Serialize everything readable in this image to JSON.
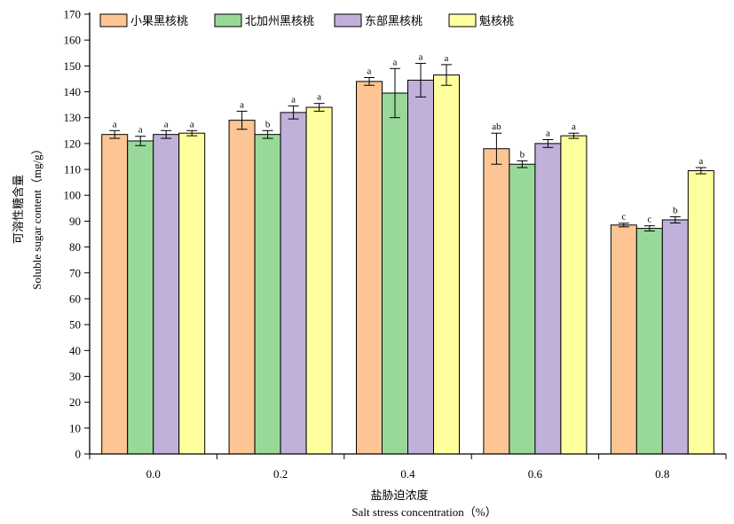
{
  "chart_data": {
    "type": "bar",
    "title": "",
    "xlabel_cn": "盐胁迫浓度",
    "xlabel_en": "Salt stress concentration（%）",
    "ylabel_cn": "可溶性糖含量",
    "ylabel_en": "Soluble sugar content（mg/g）",
    "ylim": [
      0,
      170
    ],
    "ytick_step": 10,
    "legend_position": "top-left",
    "grid": false,
    "categories": [
      "0.0",
      "0.2",
      "0.4",
      "0.6",
      "0.8"
    ],
    "series": [
      {
        "name": "小果黑核桃",
        "color": "#fcc593",
        "values": [
          123.5,
          129,
          144,
          118,
          88.5
        ],
        "errors": [
          1.5,
          3.5,
          1.5,
          6,
          0.7
        ],
        "letters": [
          "a",
          "a",
          "a",
          "ab",
          "c"
        ]
      },
      {
        "name": "北加州黑核桃",
        "color": "#98d99a",
        "values": [
          121,
          123.5,
          139.5,
          112,
          87.2
        ],
        "errors": [
          1.8,
          1.5,
          9.5,
          1.3,
          1
        ],
        "letters": [
          "a",
          "b",
          "a",
          "b",
          "c"
        ]
      },
      {
        "name": "东部黑核桃",
        "color": "#c1b0da",
        "values": [
          123.5,
          132,
          144.5,
          120,
          90.5
        ],
        "errors": [
          1.5,
          2.5,
          6.5,
          1.5,
          1.2
        ],
        "letters": [
          "a",
          "a",
          "a",
          "a",
          "b"
        ]
      },
      {
        "name": "魁核桃",
        "color": "#ffff9d",
        "values": [
          124,
          134,
          146.5,
          123,
          109.5
        ],
        "errors": [
          1,
          1.5,
          4,
          1,
          1.2
        ],
        "letters": [
          "a",
          "a",
          "a",
          "a",
          "a"
        ]
      }
    ]
  }
}
